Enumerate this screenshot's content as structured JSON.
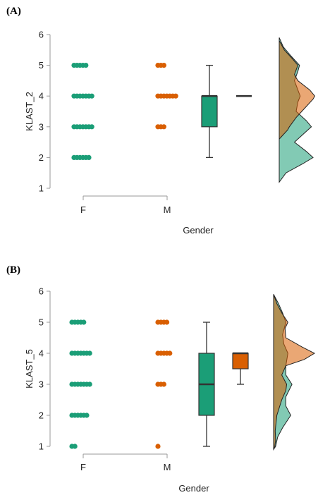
{
  "panels": [
    {
      "label": "(A)"
    },
    {
      "label": "(B)"
    }
  ],
  "colors": {
    "F": "#1b9e77",
    "M": "#d95f02",
    "axis": "#999999",
    "box_outline": "#333333"
  },
  "chart_data": [
    {
      "type": "raincloud",
      "panel": "(A)",
      "xlabel": "Gender",
      "ylabel": "KLAST_2",
      "categories": [
        "F",
        "M"
      ],
      "ylim": [
        1,
        6
      ],
      "yticks": [
        1,
        2,
        3,
        4,
        5,
        6
      ],
      "points": {
        "F": [
          {
            "y": 5,
            "count": 5
          },
          {
            "y": 4,
            "count": 7
          },
          {
            "y": 3,
            "count": 7
          },
          {
            "y": 2,
            "count": 6
          }
        ],
        "M": [
          {
            "y": 5,
            "count": 3
          },
          {
            "y": 4,
            "count": 7
          },
          {
            "y": 3,
            "count": 3
          }
        ]
      },
      "boxplots": {
        "F": {
          "min": 2,
          "q1": 3,
          "median": 4,
          "q3": 4,
          "max": 5
        },
        "M": {
          "min": 4,
          "q1": 4,
          "median": 4,
          "q3": 4,
          "max": 4
        }
      },
      "density": {
        "F": [
          [
            1.2,
            0.0
          ],
          [
            1.5,
            0.2
          ],
          [
            1.8,
            0.7
          ],
          [
            2.0,
            1.0
          ],
          [
            2.2,
            0.8
          ],
          [
            2.5,
            0.45
          ],
          [
            2.8,
            0.75
          ],
          [
            3.0,
            0.95
          ],
          [
            3.2,
            0.8
          ],
          [
            3.5,
            0.5
          ],
          [
            3.8,
            0.55
          ],
          [
            4.0,
            0.62
          ],
          [
            4.2,
            0.55
          ],
          [
            4.5,
            0.45
          ],
          [
            4.8,
            0.55
          ],
          [
            5.0,
            0.6
          ],
          [
            5.3,
            0.35
          ],
          [
            5.6,
            0.12
          ],
          [
            5.9,
            0.0
          ]
        ],
        "M": [
          [
            2.6,
            0.0
          ],
          [
            2.9,
            0.25
          ],
          [
            3.0,
            0.3
          ],
          [
            3.3,
            0.5
          ],
          [
            3.6,
            0.75
          ],
          [
            3.9,
            1.0
          ],
          [
            4.0,
            1.05
          ],
          [
            4.2,
            0.9
          ],
          [
            4.5,
            0.55
          ],
          [
            4.7,
            0.45
          ],
          [
            5.0,
            0.55
          ],
          [
            5.2,
            0.4
          ],
          [
            5.5,
            0.15
          ],
          [
            5.8,
            0.0
          ]
        ]
      }
    },
    {
      "type": "raincloud",
      "panel": "(B)",
      "xlabel": "Gender",
      "ylabel": "KLAST_5",
      "categories": [
        "F",
        "M"
      ],
      "ylim": [
        1,
        6
      ],
      "yticks": [
        1,
        2,
        3,
        4,
        5,
        6
      ],
      "points": {
        "F": [
          {
            "y": 5,
            "count": 5
          },
          {
            "y": 4,
            "count": 7
          },
          {
            "y": 3,
            "count": 7
          },
          {
            "y": 2,
            "count": 6
          },
          {
            "y": 1,
            "count": 2
          }
        ],
        "M": [
          {
            "y": 5,
            "count": 4
          },
          {
            "y": 4,
            "count": 5
          },
          {
            "y": 3,
            "count": 3
          },
          {
            "y": 1,
            "count": 1
          }
        ]
      },
      "boxplots": {
        "F": {
          "min": 1,
          "q1": 2,
          "median": 3,
          "q3": 4,
          "max": 5
        },
        "M": {
          "min": 3,
          "q1": 3.5,
          "median": 4,
          "q3": 4,
          "max": 4
        }
      },
      "density": {
        "F": [
          [
            0.9,
            0.0
          ],
          [
            1.0,
            0.05
          ],
          [
            1.3,
            0.1
          ],
          [
            1.6,
            0.22
          ],
          [
            2.0,
            0.42
          ],
          [
            2.3,
            0.3
          ],
          [
            2.6,
            0.3
          ],
          [
            3.0,
            0.45
          ],
          [
            3.3,
            0.3
          ],
          [
            3.6,
            0.3
          ],
          [
            4.0,
            0.35
          ],
          [
            4.3,
            0.25
          ],
          [
            4.6,
            0.22
          ],
          [
            5.0,
            0.3
          ],
          [
            5.3,
            0.22
          ],
          [
            5.6,
            0.12
          ],
          [
            5.9,
            0.0
          ]
        ],
        "M": [
          [
            0.9,
            0.0
          ],
          [
            1.0,
            0.03
          ],
          [
            1.2,
            0.05
          ],
          [
            1.5,
            0.04
          ],
          [
            2.0,
            0.08
          ],
          [
            2.5,
            0.2
          ],
          [
            2.8,
            0.3
          ],
          [
            3.0,
            0.32
          ],
          [
            3.3,
            0.2
          ],
          [
            3.6,
            0.3
          ],
          [
            3.8,
            0.75
          ],
          [
            4.0,
            1.0
          ],
          [
            4.2,
            0.7
          ],
          [
            4.5,
            0.3
          ],
          [
            4.8,
            0.28
          ],
          [
            5.0,
            0.35
          ],
          [
            5.3,
            0.2
          ],
          [
            5.6,
            0.08
          ],
          [
            5.9,
            0.0
          ]
        ]
      }
    }
  ]
}
